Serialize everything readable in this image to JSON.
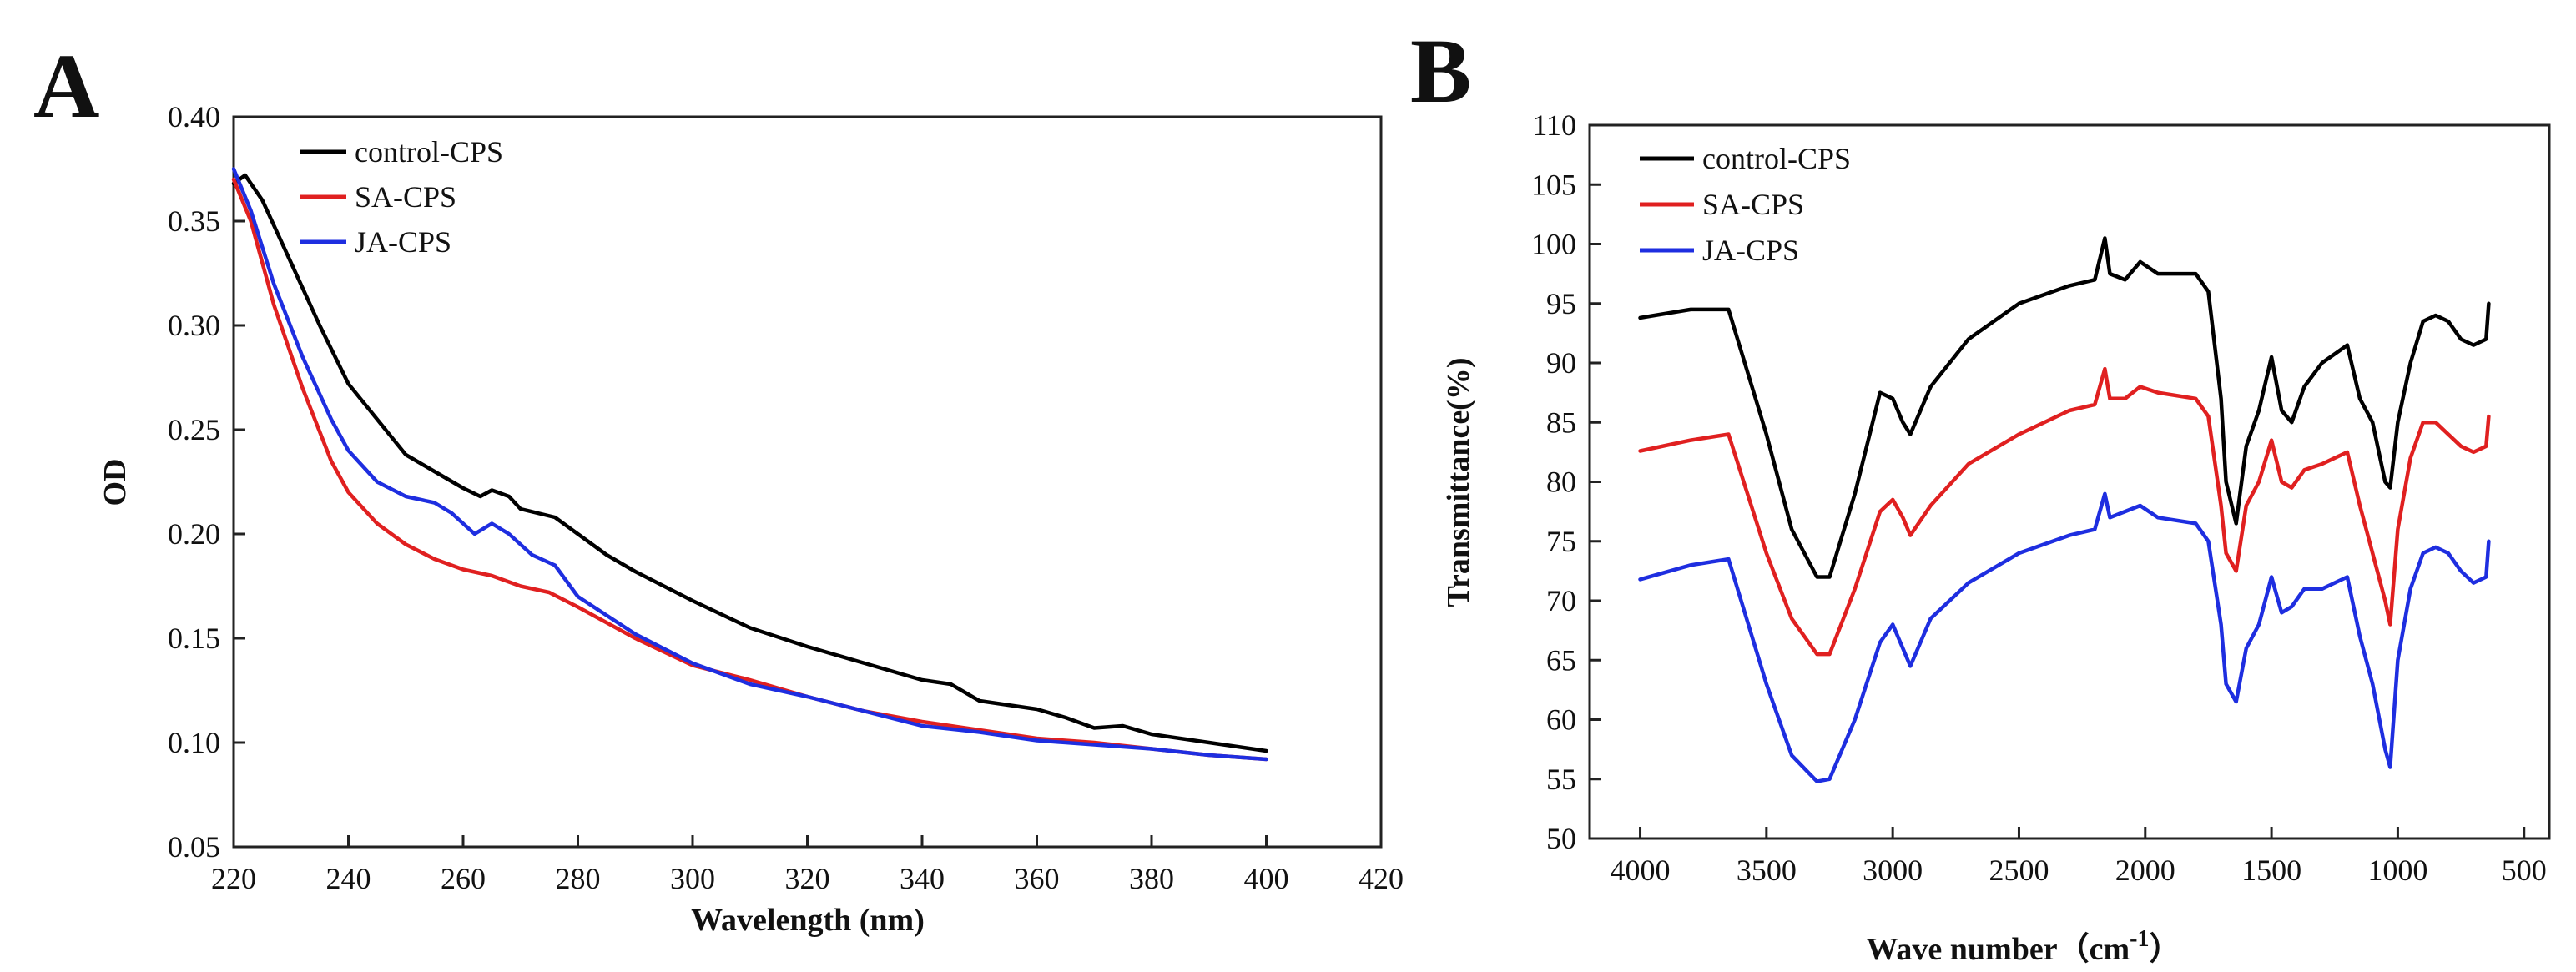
{
  "chart_data": [
    {
      "panel": "A",
      "type": "line",
      "title": "",
      "xlabel": "Wavelength (nm)",
      "ylabel": "OD",
      "xlim": [
        220,
        420
      ],
      "ylim": [
        0.05,
        0.4
      ],
      "xticks": [
        220,
        240,
        260,
        280,
        300,
        320,
        340,
        360,
        380,
        400,
        420
      ],
      "yticks": [
        0.05,
        0.1,
        0.15,
        0.2,
        0.25,
        0.3,
        0.35,
        0.4
      ],
      "xtick_labels": [
        "220",
        "240",
        "260",
        "280",
        "300",
        "320",
        "340",
        "360",
        "380",
        "400",
        "420"
      ],
      "ytick_labels": [
        "0.05",
        "0.10",
        "0.15",
        "0.20",
        "0.25",
        "0.30",
        "0.35",
        "0.40"
      ],
      "legend_position": "top-left",
      "series": [
        {
          "name": "control-CPS",
          "color": "#000000",
          "x": [
            220,
            222,
            225,
            230,
            235,
            240,
            245,
            250,
            255,
            260,
            263,
            265,
            268,
            270,
            273,
            276,
            280,
            285,
            290,
            300,
            310,
            320,
            330,
            340,
            345,
            350,
            355,
            360,
            365,
            370,
            375,
            380,
            390,
            400
          ],
          "y": [
            0.368,
            0.372,
            0.36,
            0.33,
            0.3,
            0.272,
            0.255,
            0.238,
            0.23,
            0.222,
            0.218,
            0.221,
            0.218,
            0.212,
            0.21,
            0.208,
            0.2,
            0.19,
            0.182,
            0.168,
            0.155,
            0.146,
            0.138,
            0.13,
            0.128,
            0.12,
            0.118,
            0.116,
            0.112,
            0.107,
            0.108,
            0.104,
            0.1,
            0.096
          ]
        },
        {
          "name": "SA-CPS",
          "color": "#e02020",
          "x": [
            220,
            223,
            227,
            232,
            237,
            240,
            245,
            250,
            255,
            260,
            265,
            270,
            275,
            280,
            290,
            300,
            310,
            320,
            330,
            340,
            350,
            360,
            370,
            380,
            390,
            400
          ],
          "y": [
            0.37,
            0.35,
            0.31,
            0.27,
            0.235,
            0.22,
            0.205,
            0.195,
            0.188,
            0.183,
            0.18,
            0.175,
            0.172,
            0.165,
            0.15,
            0.137,
            0.13,
            0.122,
            0.115,
            0.11,
            0.106,
            0.102,
            0.1,
            0.097,
            0.094,
            0.092
          ]
        },
        {
          "name": "JA-CPS",
          "color": "#1e2ee0",
          "x": [
            220,
            223,
            227,
            232,
            237,
            240,
            245,
            250,
            255,
            258,
            262,
            265,
            268,
            272,
            276,
            280,
            290,
            300,
            310,
            320,
            330,
            340,
            350,
            360,
            370,
            380,
            390,
            400
          ],
          "y": [
            0.375,
            0.355,
            0.32,
            0.285,
            0.255,
            0.24,
            0.225,
            0.218,
            0.215,
            0.21,
            0.2,
            0.205,
            0.2,
            0.19,
            0.185,
            0.17,
            0.152,
            0.138,
            0.128,
            0.122,
            0.115,
            0.108,
            0.105,
            0.101,
            0.099,
            0.097,
            0.094,
            0.092
          ]
        }
      ]
    },
    {
      "panel": "B",
      "type": "line",
      "title": "",
      "xlabel": "Wave number（cm",
      "xlabel_suffix": "）",
      "xlabel_superscript": "-1",
      "ylabel": "Transmittance(%)",
      "xlim": [
        4200,
        400
      ],
      "ylim": [
        50,
        110
      ],
      "xticks": [
        4000,
        3500,
        3000,
        2500,
        2000,
        1500,
        1000,
        500
      ],
      "yticks": [
        50,
        55,
        60,
        65,
        70,
        75,
        80,
        85,
        90,
        95,
        100,
        105,
        110
      ],
      "xtick_labels": [
        "4000",
        "3500",
        "3000",
        "2500",
        "2000",
        "1500",
        "1000",
        "500"
      ],
      "ytick_labels": [
        "50",
        "55",
        "60",
        "65",
        "70",
        "75",
        "80",
        "85",
        "90",
        "95",
        "100",
        "105",
        "110"
      ],
      "legend_position": "top-left",
      "series": [
        {
          "name": "control-CPS",
          "color": "#000000",
          "x": [
            4000,
            3800,
            3650,
            3500,
            3400,
            3300,
            3250,
            3150,
            3050,
            3000,
            2960,
            2930,
            2850,
            2700,
            2500,
            2300,
            2200,
            2160,
            2140,
            2080,
            2020,
            1950,
            1800,
            1750,
            1700,
            1680,
            1640,
            1600,
            1550,
            1500,
            1460,
            1420,
            1370,
            1300,
            1200,
            1150,
            1100,
            1050,
            1030,
            1000,
            950,
            900,
            850,
            800,
            750,
            700,
            650,
            640
          ],
          "y": [
            93.8,
            94.5,
            94.5,
            84,
            76,
            72,
            72,
            79,
            87.5,
            87,
            85,
            84,
            88,
            92,
            95,
            96.5,
            97,
            100.5,
            97.5,
            97,
            98.5,
            97.5,
            97.5,
            96,
            87,
            80,
            76.5,
            83,
            86,
            90.5,
            86,
            85,
            88,
            90,
            91.5,
            87,
            85,
            80,
            79.5,
            85,
            90,
            93.5,
            94,
            93.5,
            92,
            91.5,
            92,
            95
          ]
        },
        {
          "name": "SA-CPS",
          "color": "#e02020",
          "x": [
            4000,
            3800,
            3650,
            3500,
            3400,
            3300,
            3250,
            3150,
            3050,
            3000,
            2960,
            2930,
            2850,
            2700,
            2500,
            2300,
            2200,
            2160,
            2140,
            2080,
            2020,
            1950,
            1800,
            1750,
            1700,
            1680,
            1640,
            1600,
            1550,
            1500,
            1460,
            1420,
            1370,
            1300,
            1200,
            1150,
            1100,
            1050,
            1030,
            1000,
            950,
            900,
            850,
            800,
            750,
            700,
            650,
            640
          ],
          "y": [
            82.6,
            83.5,
            84,
            74,
            68.5,
            65.5,
            65.5,
            71,
            77.5,
            78.5,
            77,
            75.5,
            78,
            81.5,
            84,
            86,
            86.5,
            89.5,
            87,
            87,
            88,
            87.5,
            87,
            85.5,
            78,
            74,
            72.5,
            78,
            80,
            83.5,
            80,
            79.5,
            81,
            81.5,
            82.5,
            78,
            74,
            70,
            68,
            76,
            82,
            85,
            85,
            84,
            83,
            82.5,
            83,
            85.5
          ]
        },
        {
          "name": "JA-CPS",
          "color": "#1e2ee0",
          "x": [
            4000,
            3800,
            3650,
            3500,
            3400,
            3300,
            3250,
            3150,
            3050,
            3000,
            2960,
            2930,
            2850,
            2700,
            2500,
            2300,
            2200,
            2160,
            2140,
            2080,
            2020,
            1950,
            1800,
            1750,
            1700,
            1680,
            1640,
            1600,
            1550,
            1500,
            1460,
            1420,
            1370,
            1300,
            1200,
            1150,
            1100,
            1050,
            1030,
            1000,
            950,
            900,
            850,
            800,
            750,
            700,
            650,
            640
          ],
          "y": [
            71.8,
            73,
            73.5,
            63,
            57,
            54.8,
            55,
            60,
            66.5,
            68,
            66,
            64.5,
            68.5,
            71.5,
            74,
            75.5,
            76,
            79,
            77,
            77.5,
            78,
            77,
            76.5,
            75,
            68,
            63,
            61.5,
            66,
            68,
            72,
            69,
            69.5,
            71,
            71,
            72,
            67,
            63,
            57.5,
            56,
            65,
            71,
            74,
            74.5,
            74,
            72.5,
            71.5,
            72,
            75
          ]
        }
      ]
    }
  ]
}
